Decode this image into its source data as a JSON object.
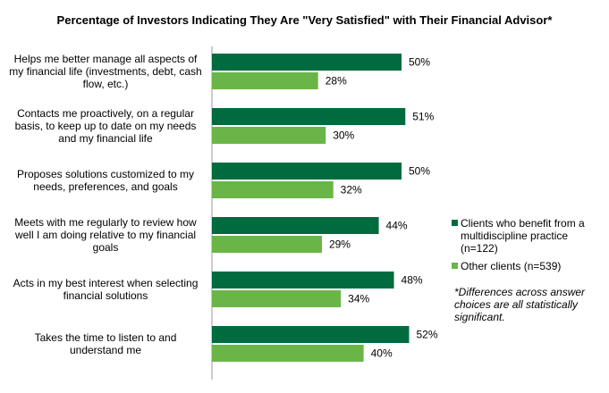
{
  "chart_data": {
    "type": "bar",
    "orientation": "horizontal",
    "title": "Percentage of Investors Indicating  They Are \"Very Satisfied\" with Their Financial Advisor*",
    "categories": [
      "Helps me better manage all aspects of my financial life (investments, debt, cash flow, etc.)",
      "Contacts me proactively, on a regular basis, to keep up to date on my needs and my financial life",
      "Proposes solutions customized to my needs, preferences, and goals",
      "Meets with me regularly to review how well I am doing relative to my financial goals",
      "Acts in my best interest when selecting financial solutions",
      "Takes the time to listen to and understand me"
    ],
    "series": [
      {
        "name": "Clients who benefit from a multidiscipline practice (n=122)",
        "color": "#006b3f",
        "values": [
          50,
          51,
          50,
          44,
          48,
          52
        ],
        "labels": [
          "50%",
          "51%",
          "50%",
          "44%",
          "48%",
          "52%"
        ]
      },
      {
        "name": "Other clients (n=539)",
        "color": "#6ab547",
        "values": [
          28,
          30,
          32,
          29,
          34,
          40
        ],
        "labels": [
          "28%",
          "30%",
          "32%",
          "29%",
          "34%",
          "40%"
        ]
      }
    ],
    "xlim": [
      0,
      60
    ],
    "grid": false,
    "legend_position": "right",
    "note": "*Differences across answer choices are all statistically significant."
  }
}
